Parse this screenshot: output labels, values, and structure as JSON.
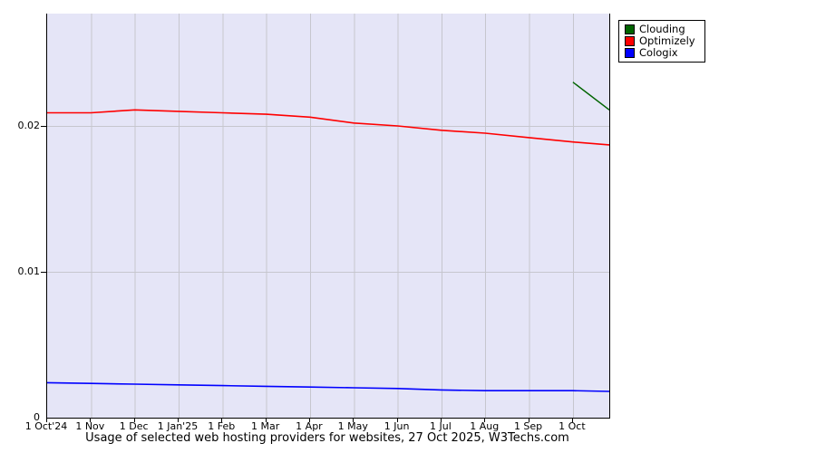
{
  "chart_data": {
    "type": "line",
    "title": "Usage of selected web hosting providers for websites, 27 Oct 2025, W3Techs.com",
    "xlabel": "",
    "ylabel": "",
    "xlim": [
      0,
      12.83
    ],
    "ylim": [
      0,
      0.0277
    ],
    "grid": true,
    "legend_position": "outside-top-right",
    "x_tick_positions": [
      0,
      1,
      2,
      3,
      4,
      5,
      6,
      7,
      8,
      9,
      10,
      11,
      12
    ],
    "x_tick_labels": [
      "1 Oct'24",
      "1 Nov",
      "1 Dec",
      "1 Jan'25",
      "1 Feb",
      "1 Mar",
      "1 Apr",
      "1 May",
      "1 Jun",
      "1 Jul",
      "1 Aug",
      "1 Sep",
      "1 Oct"
    ],
    "y_ticks": [
      {
        "value": 0,
        "label": "0"
      },
      {
        "value": 0.01,
        "label": "0.01"
      },
      {
        "value": 0.02,
        "label": "0.02"
      }
    ],
    "series": [
      {
        "name": "Clouding",
        "color": "#006400",
        "stroke_width": 1.4,
        "x": [
          12,
          12.83
        ],
        "values": [
          0.023,
          0.0211
        ]
      },
      {
        "name": "Optimizely",
        "color": "#ff0000",
        "stroke_width": 1.6,
        "x": [
          0,
          1,
          2,
          3,
          4,
          5,
          6,
          7,
          8,
          9,
          10,
          11,
          12,
          12.83
        ],
        "values": [
          0.0209,
          0.0209,
          0.0211,
          0.021,
          0.0209,
          0.0208,
          0.0206,
          0.0202,
          0.02,
          0.0197,
          0.0195,
          0.0192,
          0.0189,
          0.0187
        ]
      },
      {
        "name": "Cologix",
        "color": "#0000ff",
        "stroke_width": 1.6,
        "x": [
          0,
          1,
          2,
          3,
          4,
          5,
          6,
          7,
          8,
          9,
          10,
          11,
          12,
          12.83
        ],
        "values": [
          0.0024,
          0.00235,
          0.0023,
          0.00225,
          0.0022,
          0.00215,
          0.0021,
          0.00205,
          0.002,
          0.0019,
          0.00185,
          0.00185,
          0.00185,
          0.0018
        ]
      }
    ],
    "colors": {
      "plot_bg": "#e5e5f7",
      "grid": "#c6c6ce",
      "axis": "#000000",
      "page_bg": "#ffffff"
    }
  }
}
